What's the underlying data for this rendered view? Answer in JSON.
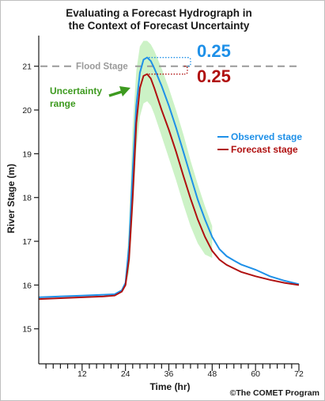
{
  "chart_data": {
    "type": "line",
    "title": [
      "Evaluating a Forecast Hydrograph in",
      "the Context of Forecast Uncertainty"
    ],
    "xlabel": "Time (hr)",
    "ylabel": "River Stage (m)",
    "xlim": [
      0,
      72
    ],
    "ylim": [
      14.2,
      21.7
    ],
    "x_ticks": [
      12,
      24,
      36,
      48,
      60,
      72
    ],
    "y_ticks": [
      15,
      16,
      17,
      18,
      19,
      20,
      21
    ],
    "x_minor_step": 2,
    "grid": false,
    "legend_placement": "right",
    "flood_stage": {
      "label": "Flood Stage",
      "value": 21
    },
    "observed_error": "0.25",
    "forecast_error": "0.25",
    "uncertainty_label": [
      "Uncertainty",
      "range"
    ],
    "series": [
      {
        "name": "Observed stage",
        "color": "#1e90e8",
        "x": [
          0,
          6,
          12,
          18,
          21,
          23,
          24,
          25,
          26,
          27,
          28,
          29,
          30,
          31,
          32,
          33,
          34,
          36,
          38,
          40,
          42,
          44,
          46,
          48,
          50,
          52,
          54,
          56,
          60,
          64,
          68,
          72
        ],
        "y": [
          15.72,
          15.74,
          15.76,
          15.78,
          15.79,
          15.88,
          16.05,
          16.9,
          18.6,
          20.1,
          20.85,
          21.15,
          21.2,
          21.12,
          20.95,
          20.75,
          20.55,
          20.1,
          19.6,
          19.05,
          18.5,
          17.95,
          17.5,
          17.1,
          16.82,
          16.66,
          16.56,
          16.47,
          16.35,
          16.2,
          16.1,
          16.02
        ]
      },
      {
        "name": "Forecast stage",
        "color": "#b01010",
        "x": [
          0,
          6,
          12,
          18,
          21,
          23,
          24,
          25,
          26,
          27,
          28,
          29,
          30,
          31,
          32,
          33,
          34,
          36,
          38,
          40,
          42,
          44,
          46,
          48,
          50,
          52,
          54,
          56,
          60,
          64,
          68,
          72
        ],
        "y": [
          15.68,
          15.7,
          15.72,
          15.74,
          15.76,
          15.85,
          16.0,
          16.6,
          18.0,
          19.7,
          20.5,
          20.78,
          20.82,
          20.72,
          20.5,
          20.25,
          20.0,
          19.55,
          19.05,
          18.5,
          17.98,
          17.5,
          17.1,
          16.78,
          16.58,
          16.46,
          16.38,
          16.3,
          16.2,
          16.12,
          16.05,
          16.0
        ]
      }
    ],
    "uncertainty_band": {
      "color": "#ccf2c6",
      "x": [
        24,
        25,
        26,
        27,
        28,
        29,
        30,
        31,
        32,
        33,
        34,
        36,
        38,
        40,
        42,
        44,
        46,
        48
      ],
      "upper": [
        16.05,
        17.4,
        19.6,
        20.9,
        21.45,
        21.58,
        21.58,
        21.5,
        21.35,
        21.15,
        20.95,
        20.5,
        20.0,
        19.45,
        18.85,
        18.3,
        17.8,
        17.35
      ],
      "lower": [
        15.98,
        16.3,
        17.6,
        19.1,
        19.85,
        20.15,
        20.2,
        20.1,
        19.9,
        19.65,
        19.4,
        18.9,
        18.4,
        17.85,
        17.35,
        16.95,
        16.7,
        16.62
      ]
    }
  },
  "credit": "©The COMET Program"
}
